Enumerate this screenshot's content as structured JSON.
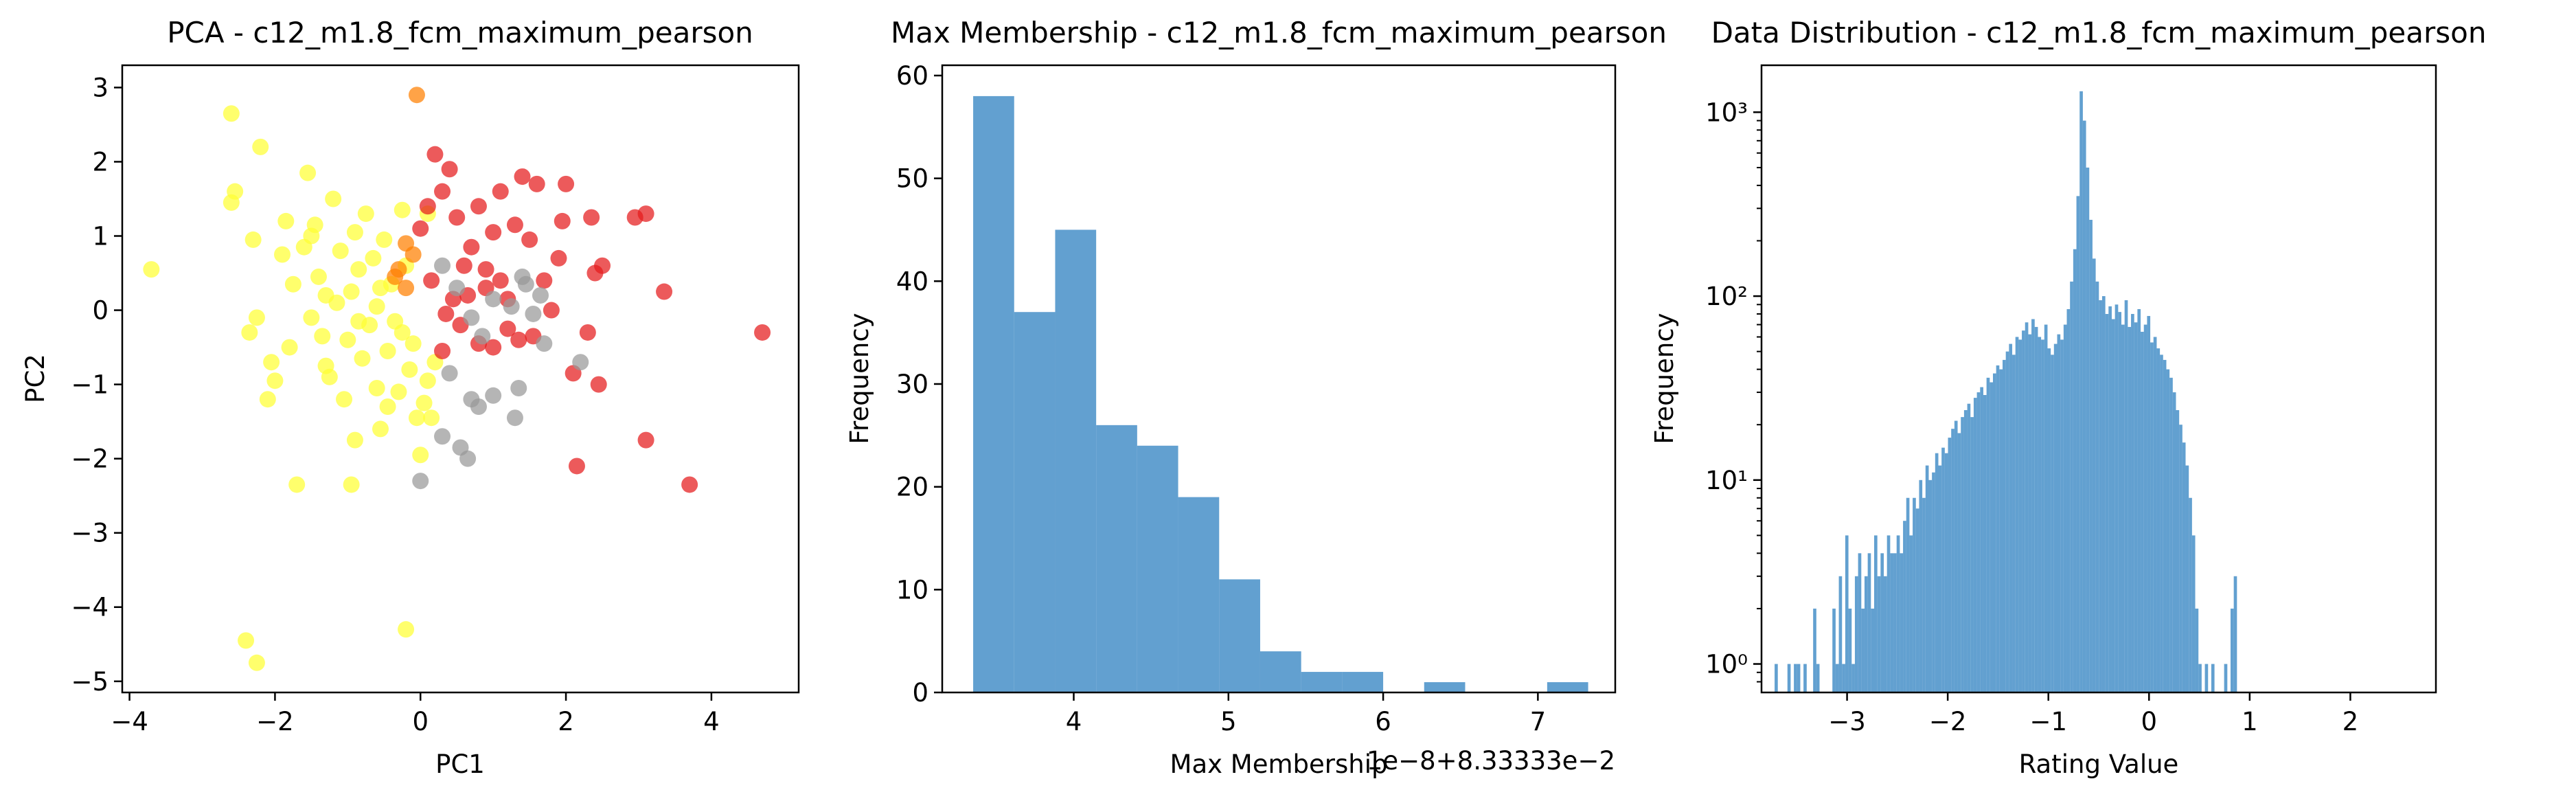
{
  "colors": {
    "yellow": "#ffff33",
    "red": "#e41a1c",
    "gray": "#999999",
    "orange": "#ff7f00",
    "hist_blue": "#3b88c4"
  },
  "chart_data": [
    {
      "type": "scatter",
      "title": "PCA - c12_m1.8_fcm_maximum_pearson",
      "xlabel": "PC1",
      "ylabel": "PC2",
      "xlim": [
        -4.1,
        5.2
      ],
      "ylim": [
        -5.15,
        3.3
      ],
      "xticks": [
        -4,
        -2,
        0,
        2,
        4
      ],
      "yticks": [
        -5,
        -4,
        -3,
        -2,
        -1,
        0,
        1,
        2,
        3
      ],
      "xtick_labels": [
        "−4",
        "−2",
        "0",
        "2",
        "4"
      ],
      "ytick_labels": [
        "−5",
        "−4",
        "−3",
        "−2",
        "−1",
        "0",
        "1",
        "2",
        "3"
      ],
      "series": [
        {
          "color": "#ffff33",
          "points": [
            [
              -3.7,
              0.55
            ],
            [
              -2.6,
              2.65
            ],
            [
              -2.6,
              1.45
            ],
            [
              -2.55,
              1.6
            ],
            [
              -2.3,
              0.95
            ],
            [
              -2.2,
              2.2
            ],
            [
              -2.35,
              -0.3
            ],
            [
              -2.25,
              -0.1
            ],
            [
              -2.1,
              -1.2
            ],
            [
              -2.05,
              -0.7
            ],
            [
              -2.0,
              -0.95
            ],
            [
              -1.9,
              0.75
            ],
            [
              -1.85,
              1.2
            ],
            [
              -1.8,
              -0.5
            ],
            [
              -1.75,
              0.35
            ],
            [
              -1.7,
              -2.35
            ],
            [
              -1.6,
              0.85
            ],
            [
              -1.55,
              1.85
            ],
            [
              -1.5,
              -0.1
            ],
            [
              -1.45,
              1.15
            ],
            [
              -1.4,
              0.45
            ],
            [
              -1.35,
              -0.35
            ],
            [
              -1.3,
              -0.75
            ],
            [
              -1.25,
              -0.9
            ],
            [
              -1.2,
              1.5
            ],
            [
              -1.15,
              0.1
            ],
            [
              -1.1,
              0.8
            ],
            [
              -1.05,
              -1.2
            ],
            [
              -1.0,
              -0.4
            ],
            [
              -0.95,
              0.25
            ],
            [
              -0.95,
              -2.35
            ],
            [
              -0.9,
              1.05
            ],
            [
              -0.9,
              -1.75
            ],
            [
              -0.85,
              0.55
            ],
            [
              -0.8,
              -0.65
            ],
            [
              -0.75,
              1.3
            ],
            [
              -0.7,
              -0.2
            ],
            [
              -0.65,
              0.7
            ],
            [
              -0.6,
              -1.05
            ],
            [
              -0.6,
              0.05
            ],
            [
              -0.55,
              -1.6
            ],
            [
              -0.5,
              0.95
            ],
            [
              -0.45,
              -0.55
            ],
            [
              -0.45,
              -1.3
            ],
            [
              -0.4,
              0.35
            ],
            [
              -0.35,
              -0.15
            ],
            [
              -0.3,
              -1.1
            ],
            [
              -0.25,
              1.35
            ],
            [
              -0.2,
              -4.3
            ],
            [
              -0.2,
              0.6
            ],
            [
              -0.15,
              -0.8
            ],
            [
              -0.1,
              -0.45
            ],
            [
              -0.05,
              -1.45
            ],
            [
              0.0,
              -1.95
            ],
            [
              0.05,
              -1.25
            ],
            [
              0.1,
              -0.95
            ],
            [
              0.15,
              -1.45
            ],
            [
              0.2,
              -0.7
            ],
            [
              -2.4,
              -4.45
            ],
            [
              -2.25,
              -4.75
            ],
            [
              -1.5,
              1.0
            ],
            [
              -1.3,
              0.2
            ],
            [
              -0.85,
              -0.15
            ],
            [
              -0.55,
              0.3
            ],
            [
              -0.25,
              -0.3
            ],
            [
              0.1,
              1.3
            ]
          ]
        },
        {
          "color": "#e41a1c",
          "points": [
            [
              0.0,
              1.1
            ],
            [
              0.1,
              1.4
            ],
            [
              0.2,
              2.1
            ],
            [
              0.3,
              1.6
            ],
            [
              0.4,
              1.9
            ],
            [
              0.5,
              1.25
            ],
            [
              0.6,
              0.6
            ],
            [
              0.7,
              0.85
            ],
            [
              0.8,
              1.4
            ],
            [
              0.9,
              0.3
            ],
            [
              1.0,
              1.05
            ],
            [
              1.1,
              1.6
            ],
            [
              1.2,
              0.15
            ],
            [
              1.3,
              1.15
            ],
            [
              1.4,
              1.8
            ],
            [
              1.5,
              0.95
            ],
            [
              1.55,
              -0.35
            ],
            [
              1.6,
              1.7
            ],
            [
              1.7,
              0.4
            ],
            [
              1.8,
              0.0
            ],
            [
              1.9,
              0.7
            ],
            [
              1.95,
              1.2
            ],
            [
              2.0,
              1.7
            ],
            [
              2.1,
              -0.85
            ],
            [
              2.15,
              -2.1
            ],
            [
              2.3,
              -0.3
            ],
            [
              2.35,
              1.25
            ],
            [
              2.4,
              0.5
            ],
            [
              2.45,
              -1.0
            ],
            [
              2.5,
              0.6
            ],
            [
              2.95,
              1.25
            ],
            [
              3.1,
              1.3
            ],
            [
              3.1,
              -1.75
            ],
            [
              3.35,
              0.25
            ],
            [
              3.7,
              -2.35
            ],
            [
              4.7,
              -0.3
            ],
            [
              0.3,
              -0.55
            ],
            [
              0.45,
              0.15
            ],
            [
              0.55,
              -0.2
            ],
            [
              0.8,
              -0.45
            ],
            [
              1.0,
              -0.5
            ],
            [
              1.2,
              -0.25
            ],
            [
              1.35,
              -0.4
            ],
            [
              0.15,
              0.4
            ],
            [
              0.35,
              -0.05
            ],
            [
              0.65,
              0.2
            ],
            [
              0.9,
              0.55
            ],
            [
              1.1,
              0.4
            ]
          ]
        },
        {
          "color": "#999999",
          "points": [
            [
              0.0,
              -2.3
            ],
            [
              0.3,
              -1.7
            ],
            [
              0.55,
              -1.85
            ],
            [
              0.65,
              -2.0
            ],
            [
              0.7,
              -1.2
            ],
            [
              0.8,
              -1.3
            ],
            [
              1.0,
              -1.15
            ],
            [
              1.3,
              -1.45
            ],
            [
              1.35,
              -1.05
            ],
            [
              0.3,
              0.6
            ],
            [
              0.5,
              0.3
            ],
            [
              0.7,
              -0.1
            ],
            [
              0.85,
              -0.35
            ],
            [
              1.0,
              0.15
            ],
            [
              1.25,
              0.05
            ],
            [
              1.4,
              0.45
            ],
            [
              1.55,
              -0.05
            ],
            [
              1.65,
              0.2
            ],
            [
              1.7,
              -0.45
            ],
            [
              2.2,
              -0.7
            ],
            [
              1.45,
              0.35
            ],
            [
              0.4,
              -0.85
            ]
          ]
        },
        {
          "color": "#ff7f00",
          "points": [
            [
              -0.05,
              2.9
            ],
            [
              -0.2,
              0.9
            ],
            [
              -0.1,
              0.75
            ],
            [
              -0.3,
              0.55
            ],
            [
              -0.35,
              0.45
            ],
            [
              -0.2,
              0.3
            ]
          ]
        }
      ]
    },
    {
      "type": "bar",
      "title": "Max Membership - c12_m1.8_fcm_maximum_pearson",
      "xlabel": "Max Membership",
      "ylabel": "Frequency",
      "offset_text": "1e−8+8.33333e−2",
      "xlim": [
        3.15,
        7.5
      ],
      "ylim": [
        0,
        61
      ],
      "xticks": [
        4,
        5,
        6,
        7
      ],
      "yticks": [
        0,
        10,
        20,
        30,
        40,
        50,
        60
      ],
      "xtick_labels": [
        "4",
        "5",
        "6",
        "7"
      ],
      "ytick_labels": [
        "0",
        "10",
        "20",
        "30",
        "40",
        "50",
        "60"
      ],
      "bin_edges": [
        3.35,
        3.615,
        3.88,
        4.145,
        4.41,
        4.675,
        4.94,
        5.205,
        5.47,
        5.735,
        6.0,
        6.265,
        6.53,
        6.795,
        7.06,
        7.325
      ],
      "values": [
        58,
        37,
        45,
        26,
        24,
        19,
        11,
        4,
        2,
        2,
        0,
        1,
        0,
        0,
        1
      ]
    },
    {
      "type": "bar",
      "title": "Data Distribution - c12_m1.8_fcm_maximum_pearson",
      "xlabel": "Rating Value",
      "ylabel": "Frequency",
      "yscale": "log",
      "xlim": [
        -3.85,
        2.85
      ],
      "ylim": [
        0.7,
        1800
      ],
      "xticks": [
        -3,
        -2,
        -1,
        0,
        1,
        2
      ],
      "xtick_labels": [
        "−3",
        "−2",
        "−1",
        "0",
        "1",
        "2"
      ],
      "yticks_major": [
        1,
        10,
        100,
        1000
      ],
      "ytick_labels": [
        "10⁰",
        "10¹",
        "10²",
        "10³"
      ],
      "bin_start": -3.72,
      "bin_width": 0.0319,
      "values": [
        1,
        0,
        0,
        0,
        1,
        0,
        1,
        1,
        0,
        1,
        0,
        0,
        2,
        1,
        0,
        0,
        0,
        0,
        2,
        1,
        3,
        1,
        5,
        2,
        1,
        3,
        4,
        2,
        3,
        4,
        2,
        5,
        3,
        4,
        3,
        5,
        4,
        4,
        5,
        4,
        6,
        8,
        5,
        8,
        7,
        10,
        8,
        12,
        10,
        11,
        14,
        12,
        15,
        14,
        17,
        19,
        21,
        18,
        22,
        24,
        26,
        22,
        28,
        30,
        32,
        29,
        36,
        34,
        38,
        42,
        40,
        45,
        50,
        55,
        48,
        60,
        58,
        65,
        72,
        62,
        75,
        68,
        60,
        58,
        70,
        52,
        48,
        55,
        62,
        58,
        70,
        85,
        120,
        180,
        350,
        1300,
        900,
        500,
        260,
        160,
        120,
        95,
        100,
        80,
        88,
        75,
        90,
        82,
        70,
        95,
        68,
        80,
        72,
        85,
        64,
        70,
        78,
        56,
        60,
        52,
        48,
        45,
        40,
        36,
        30,
        24,
        20,
        16,
        12,
        8,
        5,
        2,
        1,
        0,
        1,
        0,
        1,
        0,
        0,
        0,
        1,
        0,
        2,
        3
      ]
    }
  ]
}
